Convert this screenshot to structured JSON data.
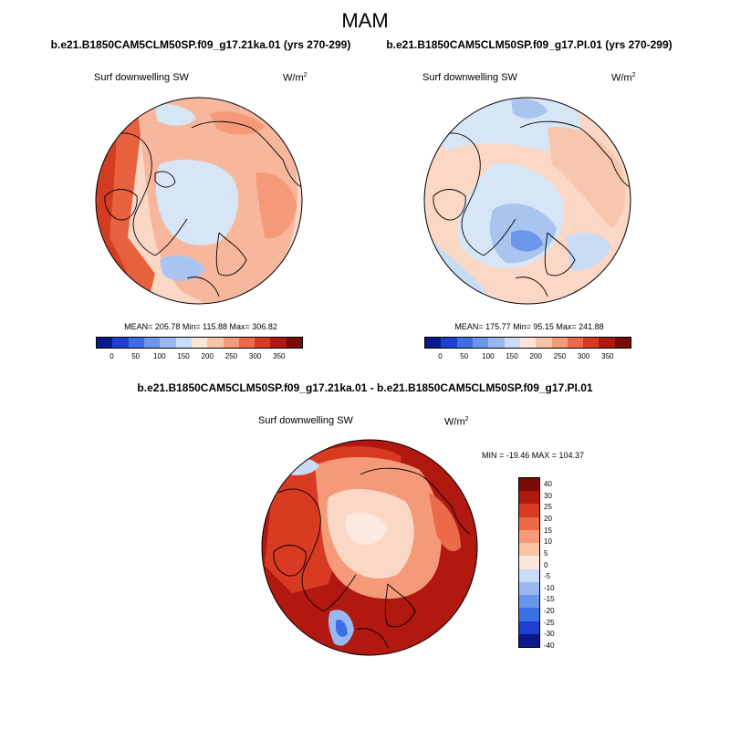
{
  "season": "MAM",
  "panels": [
    {
      "case_title": "b.e21.B1850CAM5CLM50SP.f09_g17.21ka.01 (yrs 270-299)",
      "variable": "Surf downwelling SW",
      "units_base": "W/m",
      "units_exp": "2",
      "stats": "MEAN= 205.78  Min= 115.88  Max= 306.82"
    },
    {
      "case_title": "b.e21.B1850CAM5CLM50SP.f09_g17.PI.01 (yrs 270-299)",
      "variable": "Surf downwelling SW",
      "units_base": "W/m",
      "units_exp": "2",
      "stats": "MEAN= 175.77  Min=  95.15  Max= 241.88"
    }
  ],
  "diff_panel": {
    "case_title": "b.e21.B1850CAM5CLM50SP.f09_g17.21ka.01 - b.e21.B1850CAM5CLM50SP.f09_g17.PI.01",
    "variable": "Surf downwelling SW",
    "units_base": "W/m",
    "units_exp": "2",
    "stats": "MIN = -19.46 MAX = 104.37"
  },
  "abs_colorbar": {
    "colors": [
      "#0a1a8c",
      "#1e3fd0",
      "#3c6ee6",
      "#6a96ec",
      "#9ab8f0",
      "#c8dcf6",
      "#fce6dc",
      "#f9c3a8",
      "#f49a78",
      "#ec6a48",
      "#d83a22",
      "#b01810",
      "#7a0a06"
    ],
    "tick_labels": [
      "0",
      "50",
      "100",
      "150",
      "200",
      "250",
      "300",
      "350"
    ]
  },
  "diff_colorbar": {
    "colors": [
      "#7a0a06",
      "#b01810",
      "#d83a22",
      "#ec6a48",
      "#f49a78",
      "#f9c3a8",
      "#fce6dc",
      "#c8dcf6",
      "#9ab8f0",
      "#6a96ec",
      "#3c6ee6",
      "#1e3fd0",
      "#0a1a8c"
    ],
    "tick_labels": [
      "40",
      "30",
      "25",
      "20",
      "15",
      "10",
      "5",
      "0",
      "-5",
      "-10",
      "-15",
      "-20",
      "-25",
      "-30",
      "-40"
    ]
  }
}
